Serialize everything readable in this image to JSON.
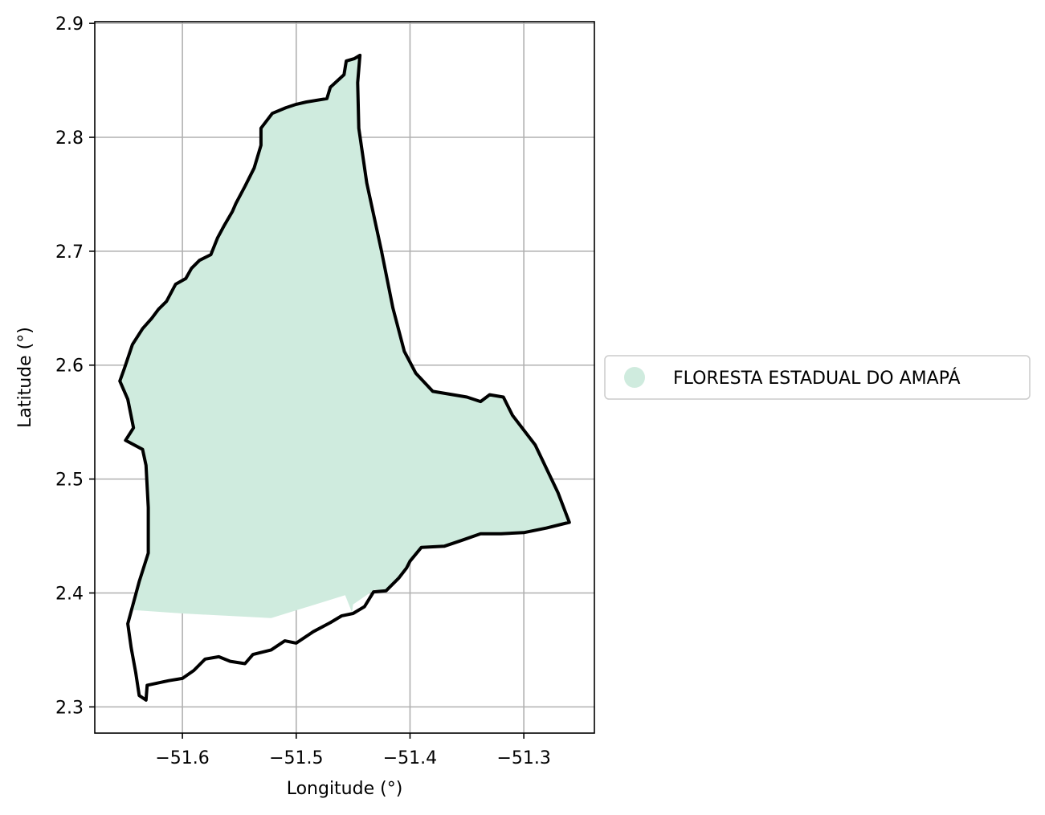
{
  "map": {
    "xlabel": "Longitude (°)",
    "ylabel": "Latitude (°)",
    "xlim": [
      -51.677,
      -51.238
    ],
    "ylim": [
      2.277,
      2.9015
    ],
    "x_ticks": [
      -51.6,
      -51.5,
      -51.4,
      -51.3
    ],
    "y_ticks": [
      2.3,
      2.4,
      2.5,
      2.6,
      2.7,
      2.8,
      2.9
    ],
    "x_tick_labels": [
      "−51.6",
      "−51.5",
      "−51.4",
      "−51.3"
    ],
    "y_tick_labels": [
      "2.3",
      "2.4",
      "2.5",
      "2.6",
      "2.7",
      "2.8",
      "2.9"
    ],
    "grid": true,
    "legend": {
      "placement": "center-right outside",
      "entries": [
        {
          "label": "FLORESTA ESTADUAL DO AMAPÁ",
          "color": "#cfebde",
          "marker": "circle"
        }
      ]
    },
    "fill_color": "#cfebde",
    "boundary_color": "#000000",
    "fill_polygon": [
      [
        -51.444,
        2.872
      ],
      [
        -51.449,
        2.869
      ],
      [
        -51.456,
        2.867
      ],
      [
        -51.458,
        2.855
      ],
      [
        -51.47,
        2.844
      ],
      [
        -51.473,
        2.834
      ],
      [
        -51.491,
        2.831
      ],
      [
        -51.5,
        2.829
      ],
      [
        -51.509,
        2.826
      ],
      [
        -51.521,
        2.821
      ],
      [
        -51.531,
        2.808
      ],
      [
        -51.531,
        2.793
      ],
      [
        -51.537,
        2.773
      ],
      [
        -51.545,
        2.757
      ],
      [
        -51.553,
        2.742
      ],
      [
        -51.556,
        2.735
      ],
      [
        -51.563,
        2.723
      ],
      [
        -51.569,
        2.712
      ],
      [
        -51.575,
        2.697
      ],
      [
        -51.585,
        2.692
      ],
      [
        -51.592,
        2.685
      ],
      [
        -51.597,
        2.676
      ],
      [
        -51.606,
        2.671
      ],
      [
        -51.614,
        2.656
      ],
      [
        -51.621,
        2.649
      ],
      [
        -51.627,
        2.641
      ],
      [
        -51.635,
        2.632
      ],
      [
        -51.644,
        2.618
      ],
      [
        -51.651,
        2.597
      ],
      [
        -51.655,
        2.586
      ],
      [
        -51.648,
        2.57
      ],
      [
        -51.643,
        2.545
      ],
      [
        -51.65,
        2.534
      ],
      [
        -51.635,
        2.526
      ],
      [
        -51.632,
        2.512
      ],
      [
        -51.63,
        2.475
      ],
      [
        -51.63,
        2.435
      ],
      [
        -51.638,
        2.41
      ],
      [
        -51.643,
        2.385
      ],
      [
        -51.6,
        2.382
      ],
      [
        -51.522,
        2.378
      ],
      [
        -51.457,
        2.398
      ],
      [
        -51.451,
        2.383
      ],
      [
        -51.45,
        2.39
      ],
      [
        -51.431,
        2.403
      ],
      [
        -51.421,
        2.402
      ],
      [
        -51.41,
        2.413
      ],
      [
        -51.403,
        2.422
      ],
      [
        -51.4,
        2.428
      ],
      [
        -51.39,
        2.44
      ],
      [
        -51.37,
        2.441
      ],
      [
        -51.355,
        2.446
      ],
      [
        -51.338,
        2.452
      ],
      [
        -51.32,
        2.452
      ],
      [
        -51.3,
        2.453
      ],
      [
        -51.28,
        2.457
      ],
      [
        -51.26,
        2.462
      ],
      [
        -51.27,
        2.488
      ],
      [
        -51.29,
        2.53
      ],
      [
        -51.31,
        2.556
      ],
      [
        -51.318,
        2.572
      ],
      [
        -51.33,
        2.574
      ],
      [
        -51.338,
        2.568
      ],
      [
        -51.35,
        2.572
      ],
      [
        -51.38,
        2.577
      ],
      [
        -51.395,
        2.593
      ],
      [
        -51.405,
        2.612
      ],
      [
        -51.415,
        2.65
      ],
      [
        -51.425,
        2.7
      ],
      [
        -51.438,
        2.76
      ],
      [
        -51.445,
        2.808
      ],
      [
        -51.446,
        2.848
      ]
    ],
    "boundary_polygon": [
      [
        -51.444,
        2.872
      ],
      [
        -51.449,
        2.869
      ],
      [
        -51.456,
        2.867
      ],
      [
        -51.458,
        2.855
      ],
      [
        -51.47,
        2.844
      ],
      [
        -51.473,
        2.834
      ],
      [
        -51.491,
        2.831
      ],
      [
        -51.5,
        2.829
      ],
      [
        -51.509,
        2.826
      ],
      [
        -51.521,
        2.821
      ],
      [
        -51.531,
        2.808
      ],
      [
        -51.531,
        2.793
      ],
      [
        -51.537,
        2.773
      ],
      [
        -51.545,
        2.757
      ],
      [
        -51.553,
        2.742
      ],
      [
        -51.556,
        2.735
      ],
      [
        -51.563,
        2.723
      ],
      [
        -51.569,
        2.712
      ],
      [
        -51.575,
        2.697
      ],
      [
        -51.585,
        2.692
      ],
      [
        -51.592,
        2.685
      ],
      [
        -51.597,
        2.676
      ],
      [
        -51.606,
        2.671
      ],
      [
        -51.614,
        2.656
      ],
      [
        -51.621,
        2.649
      ],
      [
        -51.627,
        2.641
      ],
      [
        -51.635,
        2.632
      ],
      [
        -51.644,
        2.618
      ],
      [
        -51.651,
        2.597
      ],
      [
        -51.655,
        2.586
      ],
      [
        -51.648,
        2.57
      ],
      [
        -51.643,
        2.545
      ],
      [
        -51.65,
        2.534
      ],
      [
        -51.635,
        2.526
      ],
      [
        -51.632,
        2.512
      ],
      [
        -51.63,
        2.475
      ],
      [
        -51.63,
        2.435
      ],
      [
        -51.638,
        2.41
      ],
      [
        -51.648,
        2.373
      ],
      [
        -51.645,
        2.352
      ],
      [
        -51.641,
        2.33
      ],
      [
        -51.638,
        2.31
      ],
      [
        -51.632,
        2.306
      ],
      [
        -51.631,
        2.319
      ],
      [
        -51.612,
        2.323
      ],
      [
        -51.6,
        2.325
      ],
      [
        -51.59,
        2.332
      ],
      [
        -51.58,
        2.342
      ],
      [
        -51.568,
        2.344
      ],
      [
        -51.558,
        2.34
      ],
      [
        -51.545,
        2.338
      ],
      [
        -51.538,
        2.346
      ],
      [
        -51.522,
        2.35
      ],
      [
        -51.51,
        2.358
      ],
      [
        -51.5,
        2.356
      ],
      [
        -51.485,
        2.366
      ],
      [
        -51.47,
        2.374
      ],
      [
        -51.46,
        2.38
      ],
      [
        -51.45,
        2.382
      ],
      [
        -51.44,
        2.388
      ],
      [
        -51.432,
        2.401
      ],
      [
        -51.421,
        2.402
      ],
      [
        -51.41,
        2.413
      ],
      [
        -51.403,
        2.422
      ],
      [
        -51.4,
        2.428
      ],
      [
        -51.39,
        2.44
      ],
      [
        -51.37,
        2.441
      ],
      [
        -51.355,
        2.446
      ],
      [
        -51.338,
        2.452
      ],
      [
        -51.32,
        2.452
      ],
      [
        -51.3,
        2.453
      ],
      [
        -51.28,
        2.457
      ],
      [
        -51.26,
        2.462
      ],
      [
        -51.27,
        2.488
      ],
      [
        -51.29,
        2.53
      ],
      [
        -51.31,
        2.556
      ],
      [
        -51.318,
        2.572
      ],
      [
        -51.33,
        2.574
      ],
      [
        -51.338,
        2.568
      ],
      [
        -51.35,
        2.572
      ],
      [
        -51.38,
        2.577
      ],
      [
        -51.395,
        2.593
      ],
      [
        -51.405,
        2.612
      ],
      [
        -51.415,
        2.65
      ],
      [
        -51.425,
        2.7
      ],
      [
        -51.438,
        2.76
      ],
      [
        -51.445,
        2.808
      ],
      [
        -51.446,
        2.848
      ]
    ]
  }
}
